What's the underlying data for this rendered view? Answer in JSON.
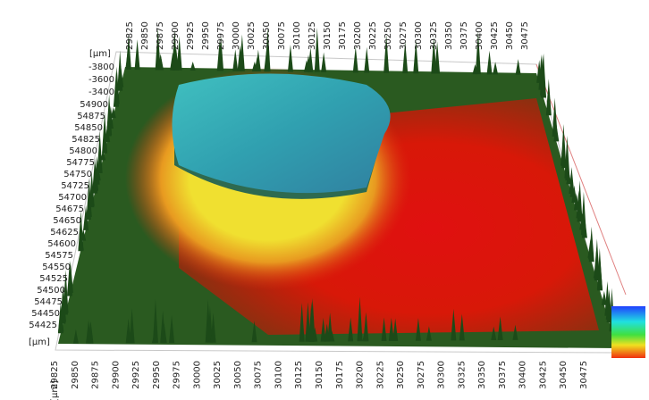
{
  "axes": {
    "unit": "[µm]",
    "top_x": [
      "29825",
      "29850",
      "29875",
      "29900",
      "29925",
      "29950",
      "29975",
      "30000",
      "30025",
      "30050",
      "30075",
      "30100",
      "30125",
      "30150",
      "30175",
      "30200",
      "30225",
      "30250",
      "30275",
      "30300",
      "30325",
      "30350",
      "30375",
      "30400",
      "30425",
      "30450",
      "30475"
    ],
    "bottom_x": [
      "29825",
      "29850",
      "29875",
      "29900",
      "29925",
      "29950",
      "29975",
      "30000",
      "30025",
      "30050",
      "30075",
      "30100",
      "30125",
      "30150",
      "30175",
      "30200",
      "30225",
      "30250",
      "30275",
      "30300",
      "30325",
      "30350",
      "30375",
      "30400",
      "30425",
      "30450",
      "30475"
    ],
    "left_y": [
      "54425",
      "54450",
      "54475",
      "54500",
      "54525",
      "54550",
      "54575",
      "54600",
      "54625",
      "54650",
      "54675",
      "54700",
      "54725",
      "54750",
      "54775",
      "54800",
      "54825",
      "54850",
      "54875",
      "54900"
    ],
    "z": [
      "-3800",
      "-3600",
      "-3400"
    ]
  }
}
